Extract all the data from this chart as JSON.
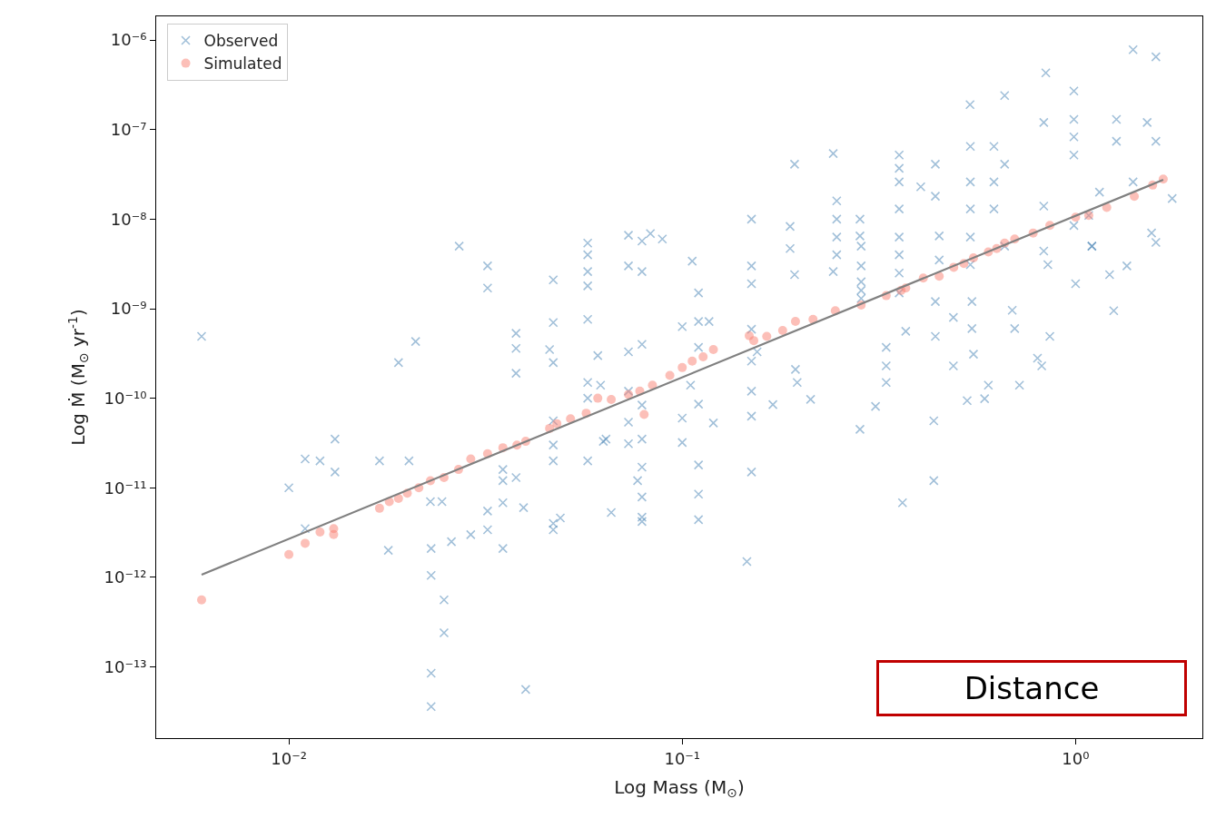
{
  "chart_data": {
    "type": "scatter",
    "xlabel": "Log Mass (M$_{⊙}$)",
    "ylabel": "Log Ṁ (M$_{⊙}$ yr$^{-1}$)",
    "log": "xy",
    "xlim": [
      0.0046,
      2.1
    ],
    "ylim": [
      1.6e-14,
      1.84e-06
    ],
    "xticks": [
      {
        "value": 0.01,
        "label": "10⁻²"
      },
      {
        "value": 0.1,
        "label": "10⁻¹"
      },
      {
        "value": 1,
        "label": "10⁰"
      }
    ],
    "yticks": [
      {
        "value": 1e-13,
        "label": "10⁻¹³"
      },
      {
        "value": 1e-12,
        "label": "10⁻¹²"
      },
      {
        "value": 1e-11,
        "label": "10⁻¹¹"
      },
      {
        "value": 1e-10,
        "label": "10⁻¹⁰"
      },
      {
        "value": 1e-09,
        "label": "10⁻⁹"
      },
      {
        "value": 1e-08,
        "label": "10⁻⁸"
      },
      {
        "value": 1e-07,
        "label": "10⁻⁷"
      },
      {
        "value": 1e-06,
        "label": "10⁻⁶"
      }
    ],
    "legend": "top left",
    "annotations": [
      "Distance"
    ],
    "series": [
      {
        "name": "Observed",
        "type": "scatter",
        "marker": "cross",
        "color": "#4682b4",
        "x": [
          0.006,
          0.01,
          0.011,
          0.012,
          0.0131,
          0.0131,
          0.011,
          0.017,
          0.0179,
          0.0202,
          0.019,
          0.021,
          0.0229,
          0.023,
          0.023,
          0.0248,
          0.0248,
          0.023,
          0.023,
          0.0245,
          0.0271,
          0.0259,
          0.029,
          0.032,
          0.032,
          0.032,
          0.032,
          0.035,
          0.035,
          0.035,
          0.035,
          0.0378,
          0.0378,
          0.0378,
          0.0378,
          0.04,
          0.0395,
          0.046,
          0.047,
          0.047,
          0.047,
          0.047,
          0.047,
          0.047,
          0.047,
          0.047,
          0.049,
          0.0575,
          0.0575,
          0.0575,
          0.0575,
          0.0575,
          0.0575,
          0.0575,
          0.0575,
          0.061,
          0.062,
          0.063,
          0.066,
          0.064,
          0.073,
          0.073,
          0.073,
          0.073,
          0.073,
          0.073,
          0.079,
          0.079,
          0.079,
          0.079,
          0.079,
          0.079,
          0.079,
          0.079,
          0.079,
          0.083,
          0.089,
          0.077,
          0.1,
          0.1,
          0.1,
          0.106,
          0.11,
          0.11,
          0.11,
          0.11,
          0.11,
          0.11,
          0.105,
          0.117,
          0.12,
          0.11,
          0.15,
          0.15,
          0.15,
          0.15,
          0.15,
          0.15,
          0.15,
          0.15,
          0.146,
          0.155,
          0.17,
          0.188,
          0.188,
          0.193,
          0.193,
          0.194,
          0.196,
          0.212,
          0.242,
          0.242,
          0.247,
          0.247,
          0.247,
          0.247,
          0.283,
          0.283,
          0.283,
          0.285,
          0.285,
          0.285,
          0.285,
          0.285,
          0.356,
          0.356,
          0.356,
          0.356,
          0.356,
          0.356,
          0.356,
          0.356,
          0.33,
          0.33,
          0.33,
          0.363,
          0.31,
          0.37,
          0.44,
          0.44,
          0.45,
          0.45,
          0.44,
          0.44,
          0.436,
          0.436,
          0.489,
          0.489,
          0.404,
          0.539,
          0.54,
          0.54,
          0.54,
          0.54,
          0.54,
          0.545,
          0.545,
          0.55,
          0.587,
          0.6,
          0.53,
          0.66,
          0.62,
          0.62,
          0.62,
          0.66,
          0.66,
          0.69,
          0.7,
          0.72,
          0.84,
          0.83,
          0.83,
          0.83,
          0.85,
          0.86,
          0.82,
          0.8,
          0.99,
          0.99,
          0.99,
          0.99,
          0.99,
          1.0,
          1.08,
          1.1,
          1.27,
          1.27,
          1.22,
          1.25,
          1.1,
          1.15,
          1.35,
          1.4,
          1.4,
          1.6,
          1.52,
          1.6,
          1.76,
          1.56,
          1.6
        ],
        "values": [
          4.9e-10,
          1e-11,
          2.1e-11,
          2e-11,
          3.5e-11,
          1.5e-11,
          3.5e-12,
          2e-11,
          2e-12,
          2e-11,
          2.5e-10,
          4.3e-10,
          7e-12,
          2.1e-12,
          1.05e-12,
          5.6e-13,
          2.4e-13,
          8.5e-14,
          3.6e-14,
          7e-12,
          5e-09,
          2.5e-12,
          3e-12,
          3e-09,
          1.7e-09,
          5.5e-12,
          3.4e-12,
          6.8e-12,
          2.1e-12,
          1.6e-11,
          1.2e-11,
          5.3e-10,
          3.6e-10,
          1.9e-10,
          1.3e-11,
          5.6e-14,
          6e-12,
          3.5e-10,
          2.1e-09,
          7e-10,
          2.5e-10,
          5.6e-11,
          3e-11,
          2e-11,
          4e-12,
          3.4e-12,
          4.6e-12,
          5.4e-09,
          4e-09,
          2.6e-09,
          1.8e-09,
          7.6e-10,
          1.5e-10,
          2e-11,
          1e-10,
          3e-10,
          1.4e-10,
          3.3e-11,
          5.3e-12,
          3.5e-11,
          6.6e-09,
          3e-09,
          3.3e-10,
          1.2e-10,
          5.4e-11,
          3.1e-11,
          5.7e-09,
          2.6e-09,
          4e-10,
          8.4e-11,
          3.5e-11,
          1.7e-11,
          7.9e-12,
          4.7e-12,
          4.2e-12,
          6.9e-09,
          6e-09,
          1.2e-11,
          6.3e-10,
          3.2e-11,
          6e-11,
          3.4e-09,
          1.5e-09,
          7.2e-10,
          8.6e-11,
          1.8e-11,
          8.5e-12,
          4.4e-12,
          1.4e-10,
          7.2e-10,
          5.3e-11,
          3.7e-10,
          1e-08,
          3e-09,
          1.9e-09,
          5.9e-10,
          2.6e-10,
          1.2e-10,
          6.3e-11,
          1.5e-11,
          1.5e-12,
          3.3e-10,
          8.5e-11,
          8.3e-09,
          4.7e-09,
          4.1e-08,
          2.4e-09,
          2.1e-10,
          1.5e-10,
          9.7e-11,
          5.4e-08,
          2.6e-09,
          1.6e-08,
          1e-08,
          6.3e-09,
          4e-09,
          4.5e-11,
          6.5e-09,
          1e-08,
          3e-09,
          2e-09,
          1.6e-09,
          1.3e-09,
          5e-09,
          5.2e-08,
          3.7e-08,
          2.6e-08,
          1.3e-08,
          6.3e-09,
          4e-09,
          2.5e-09,
          1.5e-09,
          3.7e-10,
          2.3e-10,
          1.5e-10,
          6.8e-12,
          8.1e-11,
          5.6e-10,
          4.1e-08,
          1.8e-08,
          6.5e-09,
          3.5e-09,
          1.2e-09,
          4.9e-10,
          5.6e-11,
          1.2e-11,
          2.3e-10,
          8e-10,
          2.3e-08,
          1.9e-07,
          6.5e-08,
          2.6e-08,
          1.3e-08,
          6.3e-09,
          3.1e-09,
          1.2e-09,
          6e-10,
          3.1e-10,
          9.9e-11,
          1.4e-10,
          9.4e-11,
          2.4e-07,
          6.5e-08,
          2.6e-08,
          1.3e-08,
          4.1e-08,
          5e-09,
          9.6e-10,
          6e-10,
          1.4e-10,
          4.3e-07,
          1.2e-07,
          1.4e-08,
          4.4e-09,
          3.1e-09,
          4.9e-10,
          2.3e-10,
          2.8e-10,
          2.7e-07,
          1.3e-07,
          8.3e-08,
          5.2e-08,
          8.5e-09,
          1.9e-09,
          1.1e-08,
          5e-09,
          1.3e-07,
          7.4e-08,
          2.4e-09,
          9.5e-10,
          5e-09,
          2e-08,
          3e-09,
          2.6e-08,
          7.8e-07,
          6.5e-07,
          1.2e-07,
          7.4e-08,
          1.7e-08,
          7e-09,
          5.5e-09
        ]
      },
      {
        "name": "Simulated",
        "type": "scatter",
        "marker": "circle",
        "color": "#fa8072",
        "x": [
          0.006,
          0.01,
          0.011,
          0.012,
          0.013,
          0.013,
          0.017,
          0.018,
          0.019,
          0.02,
          0.0214,
          0.0229,
          0.0248,
          0.027,
          0.029,
          0.032,
          0.035,
          0.038,
          0.04,
          0.046,
          0.048,
          0.052,
          0.057,
          0.061,
          0.066,
          0.073,
          0.078,
          0.08,
          0.084,
          0.093,
          0.1,
          0.106,
          0.113,
          0.12,
          0.148,
          0.152,
          0.164,
          0.18,
          0.194,
          0.215,
          0.245,
          0.285,
          0.33,
          0.36,
          0.37,
          0.41,
          0.45,
          0.49,
          0.52,
          0.55,
          0.6,
          0.63,
          0.66,
          0.7,
          0.78,
          0.86,
          1.0,
          1.08,
          1.2,
          1.41,
          1.57,
          1.67
        ],
        "values": [
          5.6e-13,
          1.8e-12,
          2.4e-12,
          3.2e-12,
          3.5e-12,
          3e-12,
          5.9e-12,
          7e-12,
          7.6e-12,
          8.7e-12,
          1e-11,
          1.2e-11,
          1.3e-11,
          1.6e-11,
          2.1e-11,
          2.4e-11,
          2.8e-11,
          3e-11,
          3.3e-11,
          4.6e-11,
          5.2e-11,
          5.9e-11,
          6.8e-11,
          1e-10,
          9.7e-11,
          1.1e-10,
          1.2e-10,
          6.6e-11,
          1.4e-10,
          1.8e-10,
          2.2e-10,
          2.6e-10,
          2.9e-10,
          3.5e-10,
          5e-10,
          4.4e-10,
          4.9e-10,
          5.7e-10,
          7.2e-10,
          7.6e-10,
          9.5e-10,
          1.1e-09,
          1.4e-09,
          1.6e-09,
          1.7e-09,
          2.2e-09,
          2.3e-09,
          2.9e-09,
          3.2e-09,
          3.7e-09,
          4.3e-09,
          4.7e-09,
          5.4e-09,
          6e-09,
          7e-09,
          8.5e-09,
          1.05e-08,
          1.1e-08,
          1.35e-08,
          1.8e-08,
          2.4e-08,
          2.8e-08
        ]
      },
      {
        "type": "line",
        "marker": "none",
        "line_style": "solid",
        "color": "#808080",
        "x": [
          0.006,
          1.67
        ],
        "values": [
          1.07e-12,
          2.75e-08
        ]
      }
    ]
  }
}
